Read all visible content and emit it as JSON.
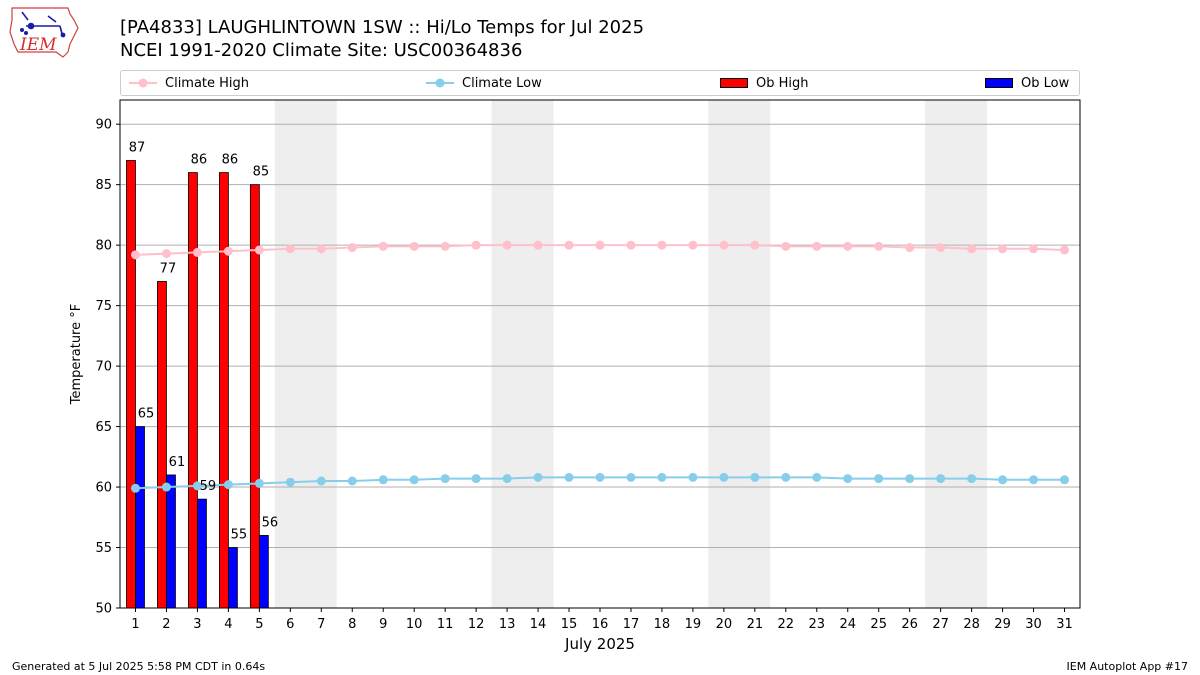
{
  "header": {
    "title_line1": "[PA4833] LAUGHLINTOWN 1SW :: Hi/Lo Temps for Jul 2025",
    "title_line2": "NCEI 1991-2020 Climate Site: USC00364836",
    "logo_text": "IEM",
    "logo_icon": "iem-logo-icon"
  },
  "legend": {
    "placement": "top",
    "items": [
      {
        "label": "Climate High",
        "kind": "line",
        "color": "#ffc0cb"
      },
      {
        "label": "Climate Low",
        "kind": "line",
        "color": "#87ceeb"
      },
      {
        "label": "Ob High",
        "kind": "bar",
        "color": "#ff0000"
      },
      {
        "label": "Ob Low",
        "kind": "bar",
        "color": "#0000ff"
      }
    ]
  },
  "chart_data": {
    "type": "bar",
    "xlabel": "July 2025",
    "ylabel": "Temperature °F",
    "xlim": [
      0.5,
      31.5
    ],
    "ylim": [
      50,
      92
    ],
    "y_ticks": [
      50,
      55,
      60,
      65,
      70,
      75,
      80,
      85,
      90
    ],
    "grid": "horizontal",
    "x": [
      1,
      2,
      3,
      4,
      5,
      6,
      7,
      8,
      9,
      10,
      11,
      12,
      13,
      14,
      15,
      16,
      17,
      18,
      19,
      20,
      21,
      22,
      23,
      24,
      25,
      26,
      27,
      28,
      29,
      30,
      31
    ],
    "weekend_shading": [
      [
        5.5,
        7.5
      ],
      [
        12.5,
        14.5
      ],
      [
        19.5,
        21.5
      ],
      [
        26.5,
        28.5
      ]
    ],
    "series": [
      {
        "name": "Ob High",
        "kind": "bar",
        "color": "#ff0000",
        "x": [
          1,
          2,
          3,
          4,
          5
        ],
        "values": [
          87,
          77,
          86,
          86,
          85
        ]
      },
      {
        "name": "Ob Low",
        "kind": "bar",
        "color": "#0000ff",
        "x": [
          1,
          2,
          3,
          4,
          5
        ],
        "values": [
          65,
          61,
          59,
          55,
          56
        ]
      },
      {
        "name": "Climate High",
        "kind": "line",
        "color": "#ffc0cb",
        "values": [
          79.2,
          79.3,
          79.4,
          79.5,
          79.6,
          79.7,
          79.7,
          79.8,
          79.9,
          79.9,
          79.9,
          80.0,
          80.0,
          80.0,
          80.0,
          80.0,
          80.0,
          80.0,
          80.0,
          80.0,
          80.0,
          79.9,
          79.9,
          79.9,
          79.9,
          79.8,
          79.8,
          79.7,
          79.7,
          79.7,
          79.6
        ]
      },
      {
        "name": "Climate Low",
        "kind": "line",
        "color": "#87ceeb",
        "values": [
          59.9,
          60.0,
          60.1,
          60.2,
          60.3,
          60.4,
          60.5,
          60.5,
          60.6,
          60.6,
          60.7,
          60.7,
          60.7,
          60.8,
          60.8,
          60.8,
          60.8,
          60.8,
          60.8,
          60.8,
          60.8,
          60.8,
          60.8,
          60.7,
          60.7,
          60.7,
          60.7,
          60.7,
          60.6,
          60.6,
          60.6
        ]
      }
    ]
  },
  "footer": {
    "generated": "Generated at 5 Jul 2025 5:58 PM CDT in 0.64s",
    "app": "IEM Autoplot App #17"
  }
}
